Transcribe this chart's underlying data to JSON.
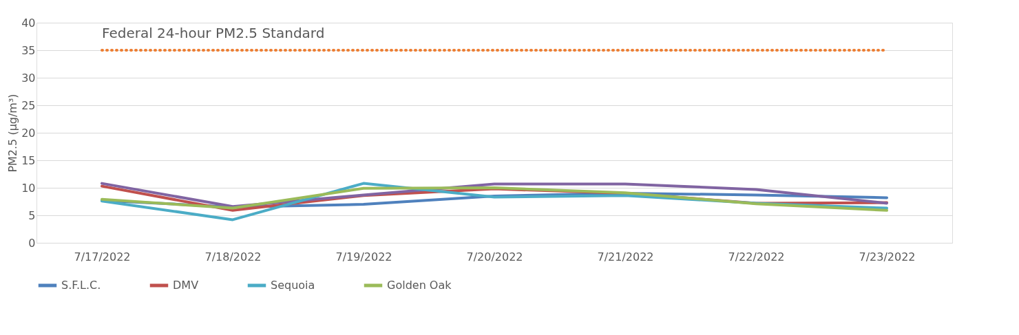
{
  "chart_data": {
    "type": "line",
    "ylabel": "PM2.5 (µg/m³)",
    "categories": [
      "7/17/2022",
      "7/18/2022",
      "7/19/2022",
      "7/20/2022",
      "7/21/2022",
      "7/22/2022",
      "7/23/2022"
    ],
    "series": [
      {
        "name": "S.F.L.C.",
        "color": "#4f81bd",
        "values": [
          7.7,
          6.5,
          7.0,
          8.5,
          9.0,
          8.7,
          8.2
        ]
      },
      {
        "name": "DMV",
        "color": "#c0504d",
        "values": [
          10.3,
          5.9,
          8.6,
          9.8,
          9.0,
          7.2,
          7.3
        ]
      },
      {
        "color": "#8064a2",
        "values": [
          10.8,
          6.6,
          8.7,
          10.7,
          10.7,
          9.7,
          7.2
        ]
      },
      {
        "name": "Sequoia",
        "color": "#4bacc6",
        "values": [
          7.6,
          4.2,
          10.8,
          8.3,
          8.6,
          7.2,
          6.3
        ]
      },
      {
        "name": "Golden Oak",
        "color": "#9bbb59",
        "values": [
          7.9,
          6.3,
          9.9,
          10.0,
          9.1,
          7.1,
          5.9
        ]
      }
    ],
    "ref_lines": [
      {
        "axis": "y",
        "value": 35,
        "label": "Federal 24-hour PM2.5 Standard",
        "color": "#ed7d31",
        "line_style": "dotted"
      }
    ],
    "ylim": [
      0,
      40
    ],
    "yticks": [
      0,
      5,
      10,
      15,
      20,
      25,
      30,
      35,
      40
    ],
    "grid": "y",
    "legend": "bottom",
    "line_style": "solid",
    "marker": "none"
  }
}
